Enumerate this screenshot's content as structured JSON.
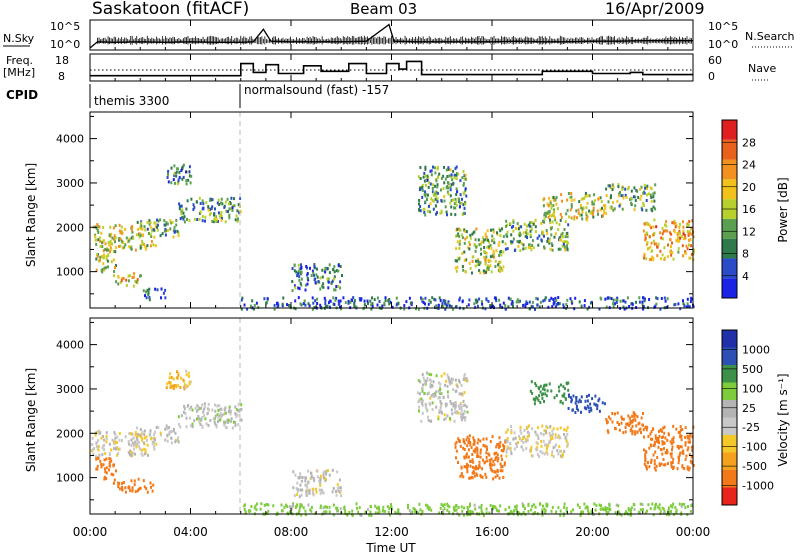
{
  "header": {
    "station": "Saskatoon (fitACF)",
    "beam": "Beam 03",
    "date": "16/Apr/2009"
  },
  "params": {
    "nsky_label": "N.Sky",
    "nsky_ticks": [
      "10^5",
      "10^0"
    ],
    "nsearch_label": "N.Search",
    "nsearch_ticks": [
      "10^5",
      "10^0"
    ],
    "freq_label_1": "Freq.",
    "freq_label_2": "[MHz]",
    "freq_ticks": [
      "18",
      "8"
    ],
    "nave_label": "Nave",
    "nave_ticks": [
      "60",
      "0"
    ],
    "cpid_label": "CPID",
    "cpid_segments": [
      {
        "label": "themis 3300",
        "start_hour": 0
      },
      {
        "label": "normalsound (fast) -157",
        "start_hour": 6
      }
    ]
  },
  "x_axis": {
    "label": "Time UT",
    "ticks": [
      "00:00",
      "04:00",
      "08:00",
      "12:00",
      "16:00",
      "20:00",
      "00:00"
    ],
    "range_hours": [
      0,
      24
    ]
  },
  "panels": {
    "power": {
      "ylabel": "Slant Range [km]",
      "yticks": [
        "1000",
        "2000",
        "3000",
        "4000"
      ],
      "colorbar_label": "Power [dB]",
      "colorbar_ticks": [
        "4",
        "8",
        "12",
        "16",
        "20",
        "24",
        "28"
      ]
    },
    "velocity": {
      "ylabel": "Slant Range [km]",
      "yticks": [
        "1000",
        "2000",
        "3000",
        "4000"
      ],
      "colorbar_label": "Velocity [m s⁻¹]",
      "colorbar_ticks": [
        "1000",
        "500",
        "100",
        "25",
        "-25",
        "-100",
        "-500",
        "-1000"
      ]
    }
  },
  "chart_data": [
    {
      "type": "line",
      "name": "N.Sky",
      "x_unit": "hour UT",
      "xlim": [
        0,
        24
      ],
      "ylim": [
        0,
        5
      ],
      "x": [
        0,
        0.3,
        1,
        2,
        3,
        4,
        5,
        6,
        6.5,
        6.9,
        7.2,
        8,
        9,
        10,
        11,
        11.9,
        12.1,
        13,
        14,
        15,
        16,
        17,
        18,
        19,
        20,
        21,
        22,
        23,
        24
      ],
      "y": [
        0,
        1.2,
        1.1,
        1.2,
        1.1,
        1.2,
        1.1,
        1.1,
        1.2,
        3.6,
        1.3,
        1.2,
        1.2,
        1.2,
        1.3,
        4.5,
        1.3,
        1.2,
        1.2,
        1.2,
        1.2,
        1.3,
        1.2,
        1.2,
        1.3,
        1.3,
        1.4,
        1.4,
        1.4
      ]
    },
    {
      "type": "line",
      "name": "Freq.",
      "x_unit": "hour UT",
      "xlim": [
        0,
        24
      ],
      "ylim": [
        8,
        18
      ],
      "x": [
        0,
        6.0,
        6.0,
        6.5,
        6.5,
        7.0,
        7.0,
        7.5,
        7.5,
        8.5,
        8.5,
        9.2,
        9.2,
        10.3,
        10.3,
        11.0,
        11.0,
        11.8,
        11.8,
        12.3,
        12.3,
        12.6,
        12.6,
        13.2,
        13.2,
        18.0,
        18.0,
        20.0,
        20.0,
        21.5,
        21.5,
        22.0,
        22.0,
        24.0
      ],
      "y": [
        9.5,
        9.5,
        15.0,
        15.0,
        11.0,
        11.0,
        14.5,
        14.5,
        10.5,
        10.5,
        14.0,
        14.0,
        11.5,
        11.5,
        15.0,
        15.0,
        10.5,
        10.5,
        15.0,
        15.0,
        12.5,
        12.5,
        16.0,
        16.0,
        10.0,
        10.0,
        11.5,
        11.5,
        10.5,
        10.5,
        11.0,
        11.0,
        10.0,
        10.0
      ]
    },
    {
      "type": "heatmap",
      "name": "Power",
      "x_unit": "hour UT",
      "y_unit": "km",
      "xlim": [
        0,
        24
      ],
      "ylim": [
        180,
        4600
      ],
      "value_range": [
        0,
        30
      ],
      "regions": [
        {
          "x": [
            0.0,
            2.6
          ],
          "y": [
            1500,
            2100
          ],
          "value": 16
        },
        {
          "x": [
            0.2,
            1.0
          ],
          "y": [
            1000,
            1500
          ],
          "value": 14
        },
        {
          "x": [
            0.9,
            2.0
          ],
          "y": [
            700,
            1000
          ],
          "value": 18
        },
        {
          "x": [
            1.8,
            3.5
          ],
          "y": [
            1800,
            2200
          ],
          "value": 12
        },
        {
          "x": [
            3.5,
            6.0
          ],
          "y": [
            2150,
            2700
          ],
          "value": 10
        },
        {
          "x": [
            3.0,
            4.0
          ],
          "y": [
            3000,
            3450
          ],
          "value": 8
        },
        {
          "x": [
            2.0,
            3.0
          ],
          "y": [
            400,
            650
          ],
          "value": 6
        },
        {
          "x": [
            13.0,
            15.0
          ],
          "y": [
            2300,
            3400
          ],
          "value": 10
        },
        {
          "x": [
            14.5,
            16.5
          ],
          "y": [
            1000,
            2000
          ],
          "value": 14
        },
        {
          "x": [
            16.5,
            19.0
          ],
          "y": [
            1500,
            2200
          ],
          "value": 12
        },
        {
          "x": [
            18.0,
            20.5
          ],
          "y": [
            2200,
            2800
          ],
          "value": 16
        },
        {
          "x": [
            20.5,
            22.5
          ],
          "y": [
            2400,
            3000
          ],
          "value": 12
        },
        {
          "x": [
            22.0,
            24.0
          ],
          "y": [
            1300,
            2200
          ],
          "value": 20
        },
        {
          "x": [
            8.0,
            10.0
          ],
          "y": [
            600,
            1200
          ],
          "value": 8
        },
        {
          "x": [
            6.0,
            24.0
          ],
          "y": [
            180,
            450
          ],
          "value": 6
        }
      ]
    },
    {
      "type": "heatmap",
      "name": "Velocity",
      "x_unit": "hour UT",
      "y_unit": "km",
      "xlim": [
        0,
        24
      ],
      "ylim": [
        180,
        4600
      ],
      "value_range": [
        -1000,
        1000
      ],
      "regions": [
        {
          "x": [
            0.0,
            2.6
          ],
          "y": [
            1500,
            2100
          ],
          "value": -10
        },
        {
          "x": [
            0.2,
            1.0
          ],
          "y": [
            1000,
            1500
          ],
          "value": -200
        },
        {
          "x": [
            0.9,
            2.5
          ],
          "y": [
            700,
            1000
          ],
          "value": -150
        },
        {
          "x": [
            1.8,
            3.5
          ],
          "y": [
            1800,
            2200
          ],
          "value": -5
        },
        {
          "x": [
            3.5,
            6.0
          ],
          "y": [
            2150,
            2700
          ],
          "value": 5
        },
        {
          "x": [
            3.0,
            4.0
          ],
          "y": [
            3000,
            3450
          ],
          "value": -50
        },
        {
          "x": [
            13.0,
            15.0
          ],
          "y": [
            2300,
            3400
          ],
          "value": 0
        },
        {
          "x": [
            14.5,
            16.5
          ],
          "y": [
            1000,
            2000
          ],
          "value": -300
        },
        {
          "x": [
            16.5,
            19.0
          ],
          "y": [
            1500,
            2200
          ],
          "value": -20
        },
        {
          "x": [
            17.5,
            19.0
          ],
          "y": [
            2700,
            3200
          ],
          "value": 300
        },
        {
          "x": [
            19.0,
            20.5
          ],
          "y": [
            2500,
            2900
          ],
          "value": 800
        },
        {
          "x": [
            20.5,
            22.0
          ],
          "y": [
            2000,
            2500
          ],
          "value": -300
        },
        {
          "x": [
            22.0,
            24.0
          ],
          "y": [
            1200,
            2200
          ],
          "value": -400
        },
        {
          "x": [
            8.0,
            10.0
          ],
          "y": [
            600,
            1200
          ],
          "value": -5
        },
        {
          "x": [
            6.0,
            24.0
          ],
          "y": [
            180,
            450
          ],
          "value": 50
        }
      ]
    }
  ],
  "colors": {
    "power_scale": [
      "#1a22e6",
      "#2a4cc8",
      "#2f7a4a",
      "#5aa050",
      "#b8d02c",
      "#f2c21a",
      "#f39120",
      "#e8621c",
      "#e02020"
    ],
    "velocity_scale": [
      "#e8241c",
      "#f27818",
      "#f4a21e",
      "#f4c828",
      "#c8c8c8",
      "#b4b4b4",
      "#7ccc3c",
      "#3c9048",
      "#2c50b4",
      "#2030a8"
    ]
  }
}
